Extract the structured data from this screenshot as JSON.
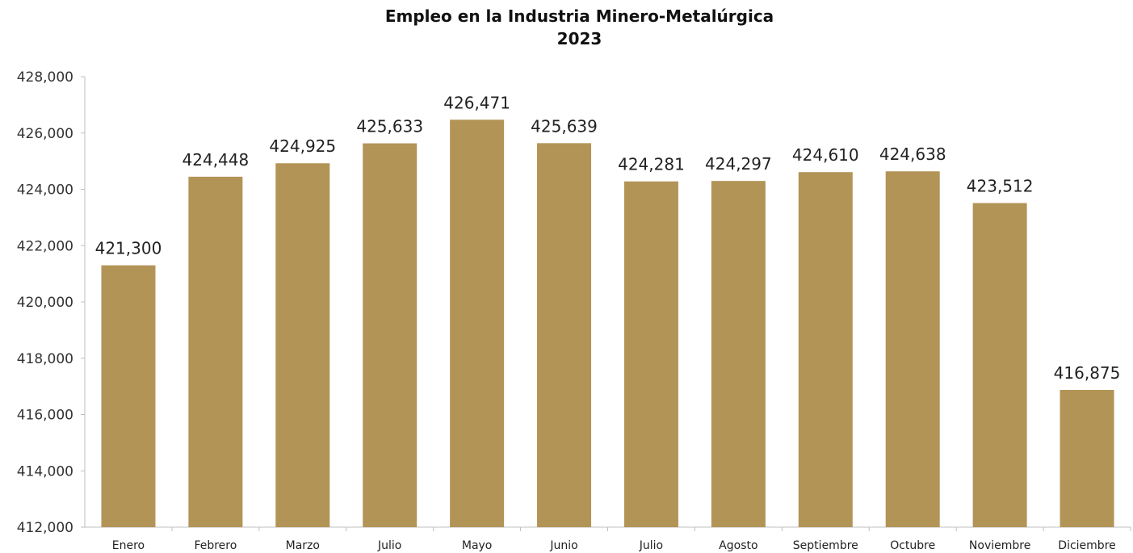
{
  "chart_data": {
    "type": "bar",
    "title": "Empleo en la Industria Minero-Metalúrgica",
    "subtitle": "2023",
    "xlabel": "",
    "ylabel": "",
    "categories": [
      "Enero",
      "Febrero",
      "Marzo",
      "Julio",
      "Mayo",
      "Junio",
      "Julio",
      "Agosto",
      "Septiembre",
      "Octubre",
      "Noviembre",
      "Diciembre"
    ],
    "values": [
      421300,
      424448,
      424925,
      425633,
      426471,
      425639,
      424281,
      424297,
      424610,
      424638,
      423512,
      416875
    ],
    "data_labels": [
      "421,300",
      "424,448",
      "424,925",
      "425,633",
      "426,471",
      "425,639",
      "424,281",
      "424,297",
      "424,610",
      "424,638",
      "423,512",
      "416,875"
    ],
    "ylim": [
      412000,
      428000
    ],
    "yticks": [
      412000,
      414000,
      416000,
      418000,
      420000,
      422000,
      424000,
      426000,
      428000
    ],
    "ytick_labels": [
      "412,000",
      "414,000",
      "416,000",
      "418,000",
      "420,000",
      "422,000",
      "424,000",
      "426,000",
      "428,000"
    ],
    "grid": false,
    "legend": "none",
    "bar_color": "#B39457",
    "axis_color": "#BFBFBF",
    "text_color": "#222222"
  }
}
